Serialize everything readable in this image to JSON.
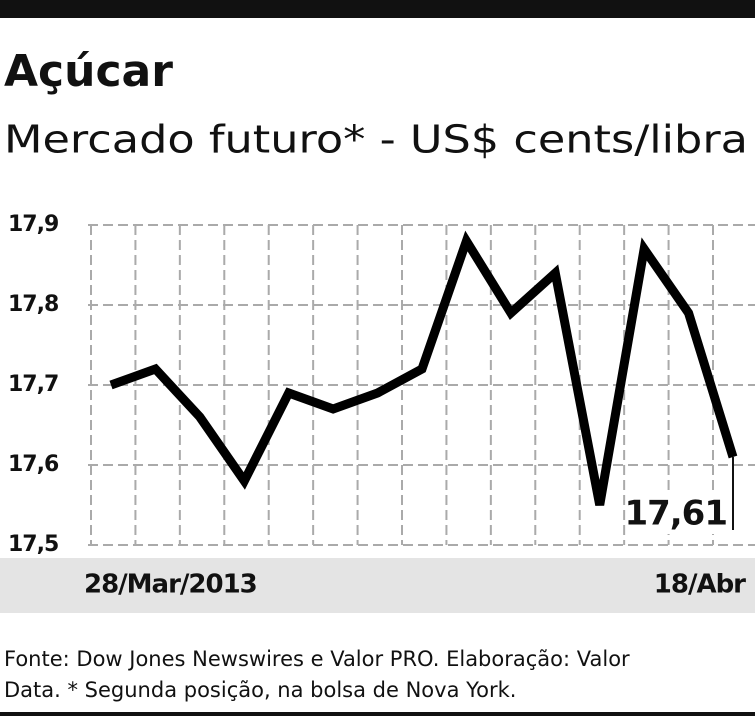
{
  "chart_data": {
    "type": "line",
    "title": "Açúcar",
    "subtitle": "Mercado futuro* - US$ cents/libra",
    "categories": [
      "28/Mar/2013",
      null,
      null,
      null,
      null,
      null,
      null,
      null,
      null,
      null,
      null,
      null,
      null,
      null,
      "18/Abr"
    ],
    "series": [
      {
        "color": "#000000",
        "values": [
          17.7,
          17.72,
          17.66,
          17.58,
          17.69,
          17.67,
          17.69,
          17.72,
          17.88,
          17.79,
          17.84,
          17.55,
          17.87,
          17.79,
          17.61
        ],
        "value_labels": [
          null,
          null,
          null,
          null,
          null,
          null,
          null,
          null,
          null,
          null,
          null,
          null,
          null,
          null,
          "17,61"
        ]
      }
    ],
    "ylim": [
      17.5,
      17.9
    ],
    "yticks": [
      {
        "value": 17.5,
        "label": "17,5"
      },
      {
        "value": 17.6,
        "label": "17,6"
      },
      {
        "value": 17.7,
        "label": "17,7"
      },
      {
        "value": 17.8,
        "label": "17,8"
      },
      {
        "value": 17.9,
        "label": "17,9"
      }
    ],
    "grid": true,
    "source": [
      "Fonte: Dow Jones Newswires e Valor PRO. Elaboração: Valor",
      "Data. * Segunda posição, na bolsa de Nova York."
    ]
  }
}
